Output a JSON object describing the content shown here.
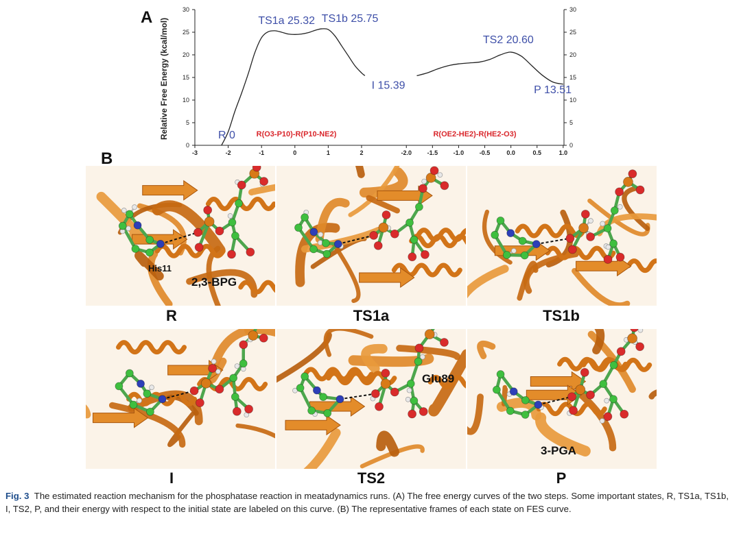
{
  "panel_a_label": "A",
  "panel_b_label": "B",
  "chart_data": [
    {
      "type": "line",
      "panel": "left",
      "ylabel": "Relative Free Energy (kcal/mol)",
      "ylim": [
        0,
        30
      ],
      "xlim": [
        -3,
        2.2
      ],
      "x_ticks": [
        "-3",
        "-2",
        "-1",
        "0",
        "1",
        "2"
      ],
      "y_ticks": [
        "0",
        "5",
        "10",
        "15",
        "20",
        "25",
        "30"
      ],
      "curve_label": "R(O3-P10)-R(P10-NE2)",
      "x": [
        -2.2,
        -2.0,
        -1.8,
        -1.6,
        -1.4,
        -1.2,
        -1.0,
        -0.8,
        -0.6,
        -0.4,
        -0.2,
        0.0,
        0.2,
        0.4,
        0.6,
        0.8,
        1.0,
        1.2,
        1.4,
        1.6,
        1.8,
        2.0,
        2.1
      ],
      "y": [
        0,
        3.0,
        7.5,
        11.5,
        15.8,
        20.5,
        23.8,
        25.1,
        25.32,
        25.0,
        24.6,
        24.5,
        24.6,
        24.9,
        25.4,
        25.75,
        25.6,
        24.2,
        22.0,
        19.8,
        17.6,
        16.0,
        15.39
      ],
      "annotations": [
        {
          "text": "R 0",
          "x": -2.3,
          "y": 1.5
        },
        {
          "text": "TS1a 25.32",
          "x": -1.1,
          "y": 26.8
        },
        {
          "text": "TS1b 25.75",
          "x": 0.8,
          "y": 27.3
        },
        {
          "text": "I 15.39",
          "x": 2.3,
          "y": 12.5
        }
      ]
    },
    {
      "type": "line",
      "panel": "right",
      "ylim": [
        0,
        30
      ],
      "xlim": [
        -2.2,
        1.1
      ],
      "x_ticks": [
        "-2.0",
        "-1.5",
        "-1.0",
        "-0.5",
        "0.0",
        "0.5",
        "1.0"
      ],
      "y_ticks": [
        "0",
        "5",
        "10",
        "15",
        "20",
        "25",
        "30"
      ],
      "curve_label": "R(OE2-HE2)-R(HE2-O3)",
      "x": [
        -1.8,
        -1.6,
        -1.4,
        -1.2,
        -1.0,
        -0.8,
        -0.6,
        -0.4,
        -0.2,
        0.0,
        0.2,
        0.4,
        0.6,
        0.8,
        1.0
      ],
      "y": [
        15.39,
        16.0,
        16.9,
        17.6,
        18.0,
        18.2,
        18.4,
        19.0,
        20.0,
        20.6,
        19.7,
        17.6,
        15.5,
        14.0,
        13.51
      ],
      "annotations": [
        {
          "text": "TS2 20.60",
          "x": -0.05,
          "y": 22.6
        },
        {
          "text": "P 13.51",
          "x": 0.8,
          "y": 11.5
        }
      ]
    }
  ],
  "frames": [
    {
      "caption": "R",
      "labels": [
        "His11",
        "2,3-BPG"
      ]
    },
    {
      "caption": "TS1a",
      "labels": []
    },
    {
      "caption": "TS1b",
      "labels": []
    },
    {
      "caption": "I",
      "labels": []
    },
    {
      "caption": "TS2",
      "labels": [
        "Glu89"
      ]
    },
    {
      "caption": "P",
      "labels": [
        "3-PGA"
      ]
    }
  ],
  "figure_caption": {
    "number": "Fig. 3",
    "text": "The estimated reaction mechanism for the phosphatase reaction in meatadynamics runs. (A) The free energy curves of the two steps. Some important states, R, TS1a, TS1b, I, TS2, P, and their energy with respect to the initial state are labeled on this curve. (B) The representative frames of each state on FES curve."
  },
  "colors": {
    "annotation": "#3e4fa8",
    "curve_label": "#d9262b",
    "curve": "#222222",
    "protein": "#d6801c",
    "carbon": "#3fbf3f",
    "oxygen": "#d92b2b",
    "nitrogen": "#2d3fb8",
    "phosphorus": "#d87a18",
    "hydrogen": "#e8e8e8",
    "caption_number": "#1f4e8c"
  }
}
